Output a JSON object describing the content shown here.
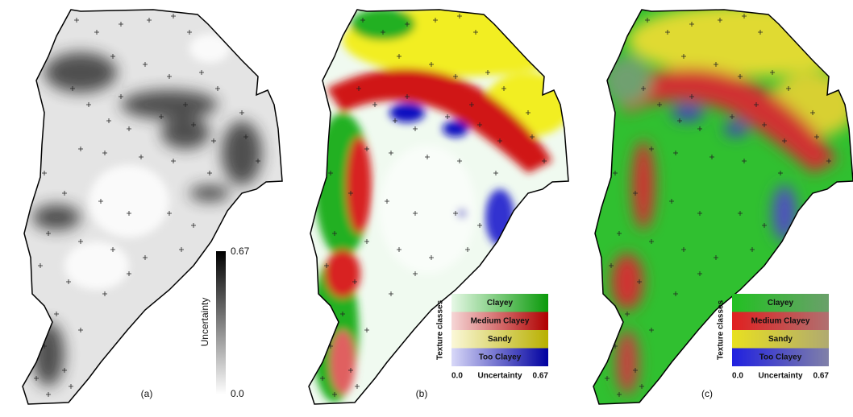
{
  "panels": [
    {
      "label": "(a)",
      "legend": {
        "max": "0.67",
        "title": "Uncertainty",
        "min": "0.0"
      }
    },
    {
      "label": "(b)",
      "legend": {
        "title": "Texture classes",
        "classes": [
          "Clayey",
          "Medium Clayey",
          "Sandy",
          "Too Clayey"
        ],
        "axis": {
          "min": "0.0",
          "title": "Uncertainty",
          "max": "0.67"
        }
      }
    },
    {
      "label": "(c)",
      "legend": {
        "title": "Texture classes",
        "classes": [
          "Clayey",
          "Medium Clayey",
          "Sandy",
          "Too Clayey"
        ],
        "axis": {
          "min": "0.0",
          "title": "Uncertainty",
          "max": "0.67"
        }
      }
    }
  ]
}
